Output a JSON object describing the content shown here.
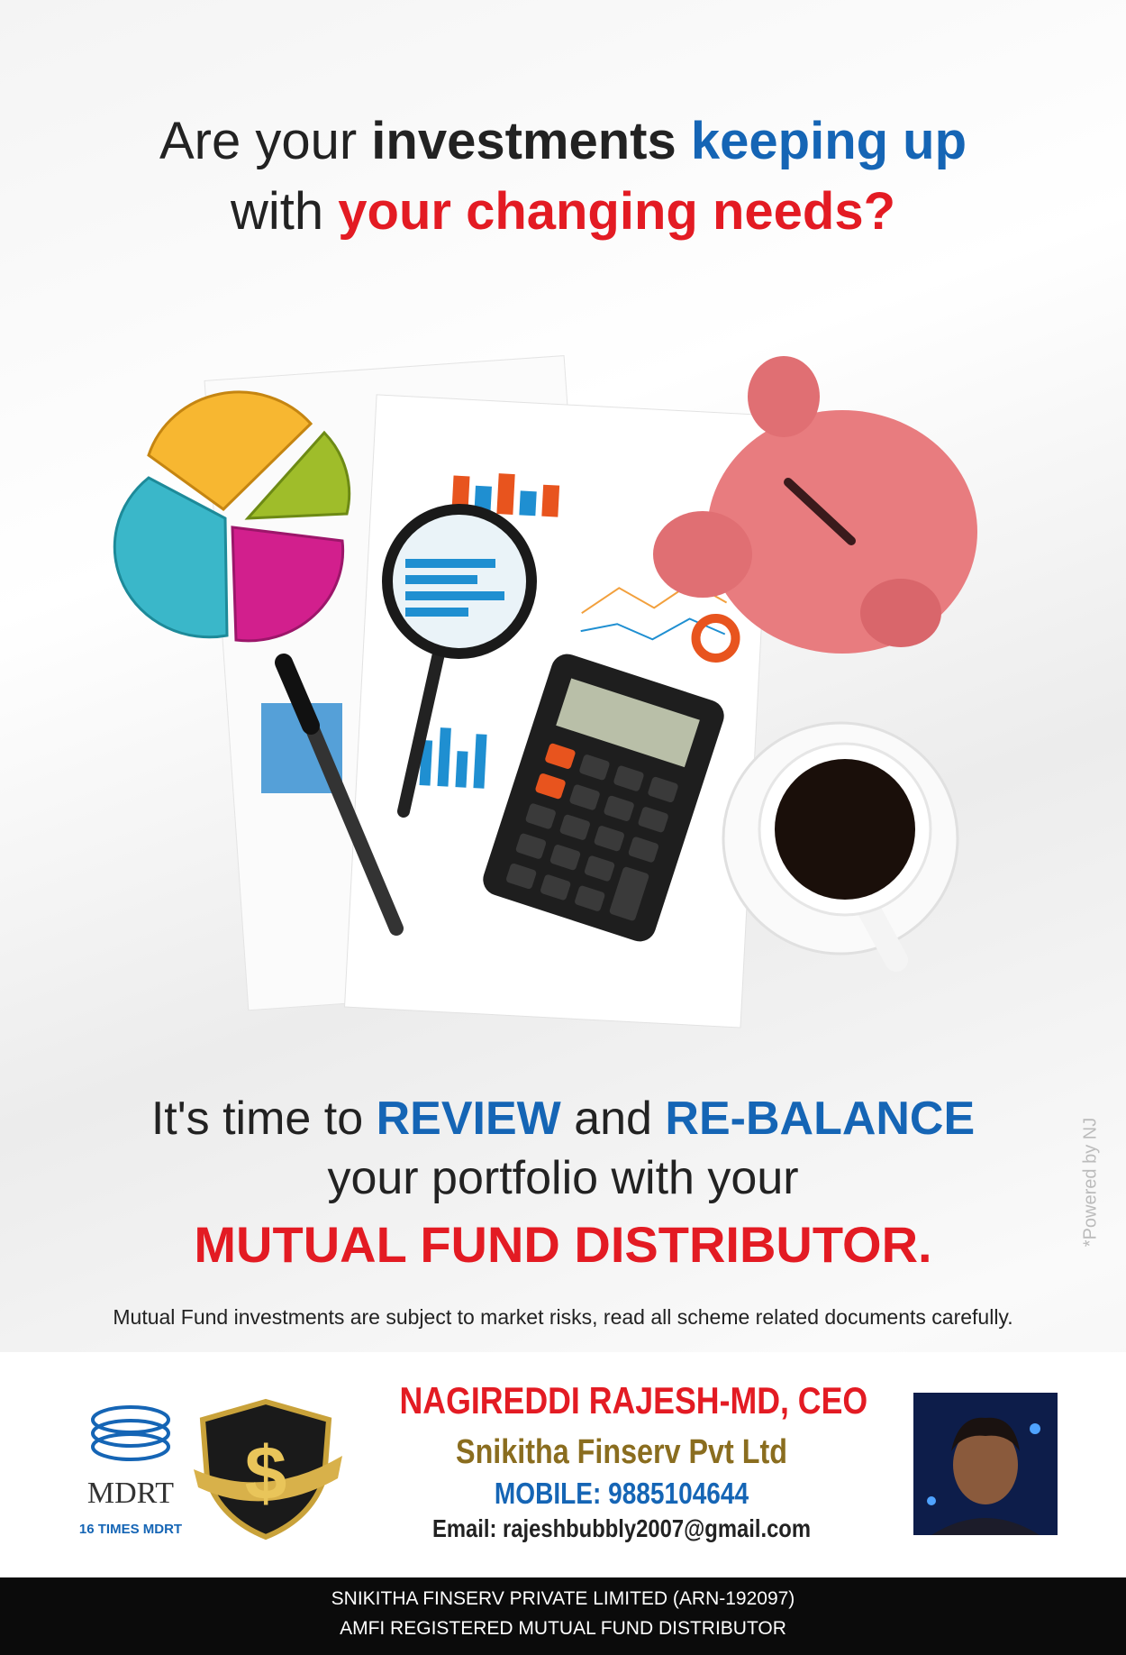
{
  "headline": {
    "line1": [
      "Are your",
      "investments",
      "keeping up"
    ],
    "line2": [
      "with",
      "your changing needs?"
    ]
  },
  "message": {
    "line1": [
      "It's time to",
      "REVIEW",
      "and",
      "RE-BALANCE"
    ],
    "line2": "your portfolio with your",
    "line3": "MUTUAL FUND DISTRIBUTOR."
  },
  "disclaimer": "Mutual Fund investments are subject to market risks, read all scheme related documents carefully.",
  "powered_by": "*Powered by NJ",
  "badge": {
    "logo": "MDRT",
    "caption": "16 TIMES MDRT",
    "shield_symbol": "$"
  },
  "contact": {
    "name": "NAGIREDDI RAJESH-MD, CEO",
    "company": "Snikitha Finserv Pvt Ltd",
    "mobile": "MOBILE: 9885104644",
    "email": "Email: rajeshbubbly2007@gmail.com"
  },
  "footer": {
    "line1": "SNIKITHA FINSERV PRIVATE LIMITED (ARN-192097)",
    "line2": "AMFI REGISTERED MUTUAL FUND DISTRIBUTOR"
  }
}
